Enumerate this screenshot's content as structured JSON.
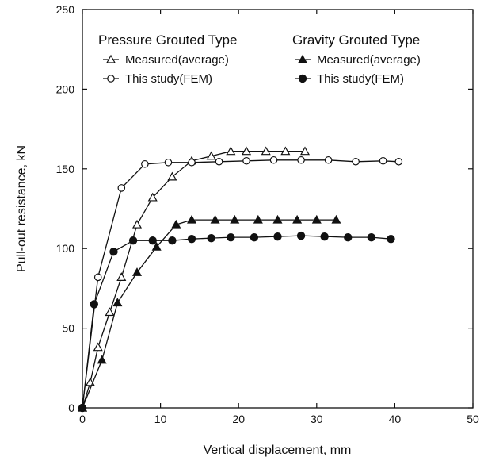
{
  "chart_data": {
    "type": "line",
    "title": "",
    "xlabel": "Vertical displacement, mm",
    "ylabel": "Pull-out resistance, kN",
    "xlim": [
      0,
      50
    ],
    "ylim": [
      0,
      250
    ],
    "xticks": [
      0,
      10,
      20,
      30,
      40,
      50
    ],
    "yticks": [
      0,
      50,
      100,
      150,
      200,
      250
    ],
    "grid": false,
    "legend_position": "top",
    "legend_groups": [
      {
        "title": "Pressure Grouted Type",
        "series": [
          0,
          1
        ]
      },
      {
        "title": "Gravity Grouted Type",
        "series": [
          2,
          3
        ]
      }
    ],
    "series": [
      {
        "name": "Measured(average)",
        "marker": "open-triangle",
        "points": [
          [
            0,
            0
          ],
          [
            1,
            16
          ],
          [
            2,
            38
          ],
          [
            3.5,
            60
          ],
          [
            5,
            82
          ],
          [
            7,
            115
          ],
          [
            9,
            132
          ],
          [
            11.5,
            145
          ],
          [
            14,
            155
          ],
          [
            16.5,
            158
          ],
          [
            19,
            161
          ],
          [
            21,
            161
          ],
          [
            23.5,
            161
          ],
          [
            26,
            161
          ],
          [
            28.5,
            161
          ]
        ]
      },
      {
        "name": "This study(FEM)",
        "marker": "open-circle",
        "points": [
          [
            0,
            0
          ],
          [
            2,
            82
          ],
          [
            5,
            138
          ],
          [
            8,
            153
          ],
          [
            11,
            154
          ],
          [
            14,
            154
          ],
          [
            17.5,
            154.5
          ],
          [
            21,
            155
          ],
          [
            24.5,
            155.5
          ],
          [
            28,
            155.5
          ],
          [
            31.5,
            155.5
          ],
          [
            35,
            154.5
          ],
          [
            38.5,
            155
          ],
          [
            40.5,
            154.5
          ]
        ]
      },
      {
        "name": "Measured(average)",
        "marker": "filled-triangle",
        "points": [
          [
            0,
            0
          ],
          [
            2.5,
            30
          ],
          [
            4.5,
            66
          ],
          [
            7,
            85
          ],
          [
            9.5,
            101
          ],
          [
            12,
            115
          ],
          [
            14,
            118
          ],
          [
            17,
            118
          ],
          [
            19.5,
            118
          ],
          [
            22.5,
            118
          ],
          [
            25,
            118
          ],
          [
            27.5,
            118
          ],
          [
            30,
            118
          ],
          [
            32.5,
            118
          ]
        ]
      },
      {
        "name": "This study(FEM)",
        "marker": "filled-circle",
        "points": [
          [
            0,
            0
          ],
          [
            1.5,
            65
          ],
          [
            4,
            98
          ],
          [
            6.5,
            105
          ],
          [
            9,
            105
          ],
          [
            11.5,
            105
          ],
          [
            14,
            106
          ],
          [
            16.5,
            106.5
          ],
          [
            19,
            107
          ],
          [
            22,
            107
          ],
          [
            25,
            107.5
          ],
          [
            28,
            108
          ],
          [
            31,
            107.5
          ],
          [
            34,
            107
          ],
          [
            37,
            107
          ],
          [
            39.5,
            106
          ]
        ]
      }
    ]
  }
}
